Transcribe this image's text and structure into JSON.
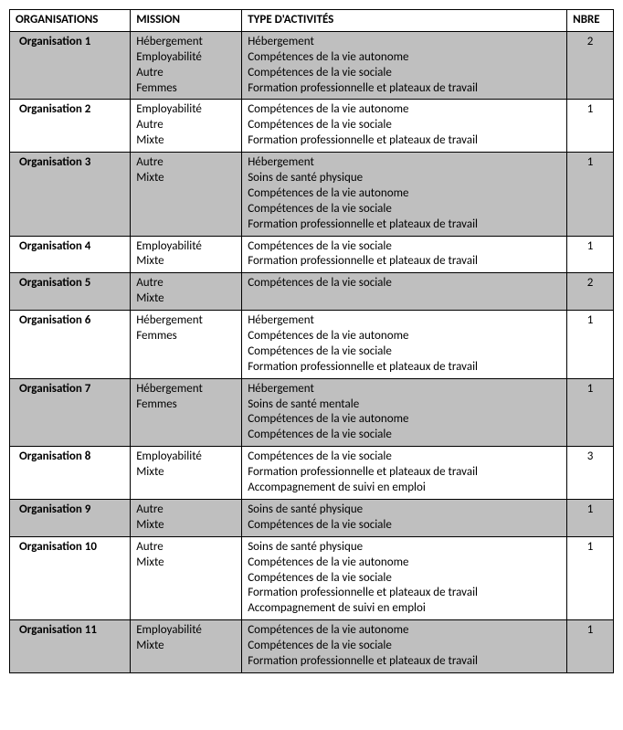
{
  "table": {
    "headers": {
      "org": "ORGANISATIONS",
      "mission": "MISSION",
      "activities": "TYPE D'ACTIVITÉS",
      "nbre": "NBRE"
    },
    "rows": [
      {
        "org": "Organisation 1",
        "mission": [
          "Hébergement",
          "Employabilité",
          "Autre",
          "Femmes"
        ],
        "activities": [
          "Hébergement",
          "Compétences de la vie autonome",
          "Compétences de la vie sociale",
          "Formation professionnelle et plateaux de travail"
        ],
        "nbre": "2",
        "shaded": true
      },
      {
        "org": "Organisation 2",
        "mission": [
          "Employabilité",
          "Autre",
          "Mixte"
        ],
        "activities": [
          "Compétences de la vie autonome",
          "Compétences de la vie sociale",
          "Formation professionnelle et plateaux de travail"
        ],
        "nbre": "1",
        "shaded": false
      },
      {
        "org": "Organisation 3",
        "mission": [
          "Autre",
          "Mixte"
        ],
        "activities": [
          "Hébergement",
          "Soins de santé physique",
          "Compétences de la vie autonome",
          "Compétences de la vie sociale",
          "Formation professionnelle et plateaux de travail"
        ],
        "nbre": "1",
        "shaded": true
      },
      {
        "org": "Organisation 4",
        "mission": [
          "Employabilité",
          "Mixte"
        ],
        "activities": [
          "Compétences de la vie sociale",
          "Formation professionnelle et plateaux de travail"
        ],
        "nbre": "1",
        "shaded": false
      },
      {
        "org": "Organisation 5",
        "mission": [
          "Autre",
          "Mixte"
        ],
        "activities": [
          "Compétences de la vie sociale"
        ],
        "nbre": "2",
        "shaded": true
      },
      {
        "org": "Organisation 6",
        "mission": [
          "Hébergement",
          "Femmes"
        ],
        "activities": [
          "Hébergement",
          "Compétences de la vie autonome",
          "Compétences de la vie sociale",
          "Formation professionnelle et plateaux de travail"
        ],
        "nbre": "1",
        "shaded": false
      },
      {
        "org": "Organisation 7",
        "mission": [
          "Hébergement",
          "Femmes"
        ],
        "activities": [
          "Hébergement",
          "Soins de santé mentale",
          "Compétences de la vie autonome",
          "Compétences de la vie sociale"
        ],
        "nbre": "1",
        "shaded": true
      },
      {
        "org": "Organisation 8",
        "mission": [
          "Employabilité",
          "Mixte"
        ],
        "activities": [
          "Compétences de la vie sociale",
          "Formation professionnelle et plateaux de travail",
          "Accompagnement de suivi en emploi"
        ],
        "nbre": "3",
        "shaded": false
      },
      {
        "org": "Organisation 9",
        "mission": [
          "Autre",
          "Mixte"
        ],
        "activities": [
          "Soins de santé physique",
          "Compétences de la vie sociale"
        ],
        "nbre": "1",
        "shaded": true
      },
      {
        "org": "Organisation 10",
        "mission": [
          "Autre",
          "Mixte"
        ],
        "activities": [
          "Soins de santé physique",
          "Compétences de la vie autonome",
          "Compétences de la vie sociale",
          "Formation professionnelle et plateaux de travail",
          "Accompagnement de suivi en emploi"
        ],
        "nbre": "1",
        "shaded": false
      },
      {
        "org": "Organisation 11",
        "mission": [
          "Employabilité",
          "Mixte"
        ],
        "activities": [
          "Compétences de la vie autonome",
          "Compétences de la vie sociale",
          "Formation professionnelle et plateaux de travail"
        ],
        "nbre": "1",
        "shaded": true
      }
    ],
    "colors": {
      "shaded_bg": "#bfbfbf",
      "plain_bg": "#ffffff",
      "border": "#000000",
      "text": "#000000"
    },
    "font": {
      "family": "Calibri, Arial, sans-serif",
      "size_pt": 10
    }
  }
}
